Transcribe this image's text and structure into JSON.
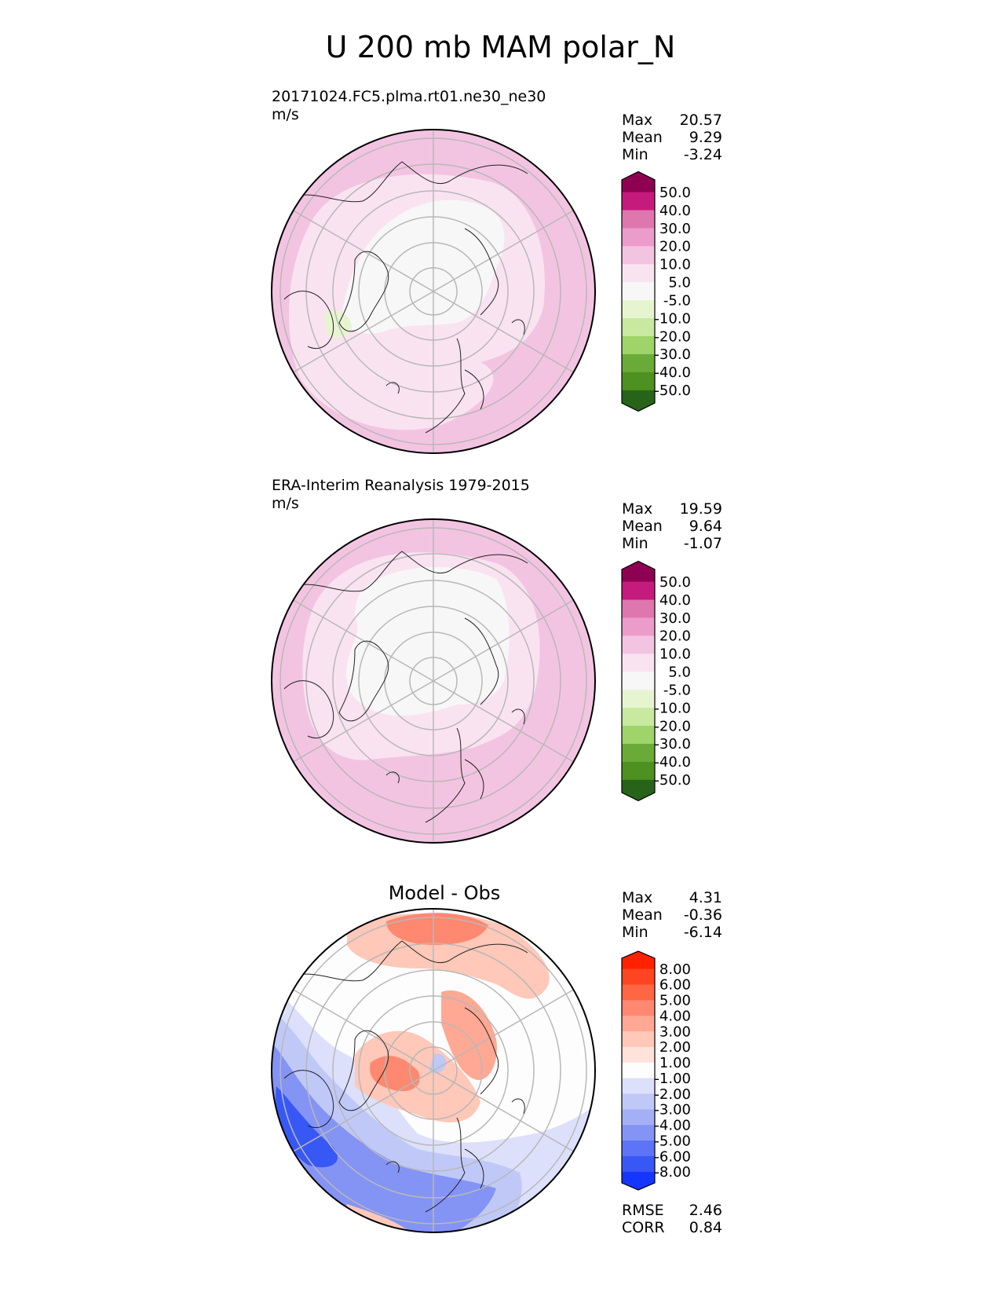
{
  "title": "U 200 mb MAM polar_N",
  "panels": [
    {
      "id": "test",
      "title_line1": "20171024.FC5.plma.rt01.ne30_ne30",
      "title_line2": "m/s",
      "stats": [
        {
          "label": "Max",
          "value": "20.57"
        },
        {
          "label": "Mean",
          "value": "9.29"
        },
        {
          "label": "Min",
          "value": "-3.24"
        }
      ],
      "colorbar": {
        "labels": [
          "50.0",
          "40.0",
          "30.0",
          "20.0",
          "10.0",
          "5.0",
          "-5.0",
          "-10.0",
          "-20.0",
          "-30.0",
          "-40.0",
          "-50.0"
        ],
        "colors": [
          "#8e0152",
          "#c51b7d",
          "#de77ae",
          "#ec9ccb",
          "#f3c4e1",
          "#fae3f1",
          "#f7f7f7",
          "#e6f5d0",
          "#c7e9a0",
          "#9ed46a",
          "#6aab37",
          "#4d9221",
          "#276419"
        ]
      }
    },
    {
      "id": "ref",
      "title_line1": "ERA-Interim Reanalysis 1979-2015",
      "title_line2": "m/s",
      "stats": [
        {
          "label": "Max",
          "value": "19.59"
        },
        {
          "label": "Mean",
          "value": "9.64"
        },
        {
          "label": "Min",
          "value": "-1.07"
        }
      ],
      "colorbar": {
        "labels": [
          "50.0",
          "40.0",
          "30.0",
          "20.0",
          "10.0",
          "5.0",
          "-5.0",
          "-10.0",
          "-20.0",
          "-30.0",
          "-40.0",
          "-50.0"
        ],
        "colors": [
          "#8e0152",
          "#c51b7d",
          "#de77ae",
          "#ec9ccb",
          "#f3c4e1",
          "#fae3f1",
          "#f7f7f7",
          "#e6f5d0",
          "#c7e9a0",
          "#9ed46a",
          "#6aab37",
          "#4d9221",
          "#276419"
        ]
      }
    },
    {
      "id": "diff",
      "title_center": "Model - Obs",
      "stats": [
        {
          "label": "Max",
          "value": "4.31"
        },
        {
          "label": "Mean",
          "value": "-0.36"
        },
        {
          "label": "Min",
          "value": "-6.14"
        }
      ],
      "metrics": [
        {
          "label": "RMSE",
          "value": "2.46"
        },
        {
          "label": "CORR",
          "value": "0.84"
        }
      ],
      "colorbar": {
        "labels": [
          "8.00",
          "6.00",
          "5.00",
          "4.00",
          "3.00",
          "2.00",
          "1.00",
          "-1.00",
          "-2.00",
          "-3.00",
          "-4.00",
          "-5.00",
          "-6.00",
          "-8.00"
        ],
        "colors": [
          "#ff2200",
          "#ff4422",
          "#ff6644",
          "#ff8870",
          "#ffa894",
          "#ffc8b8",
          "#ffe2da",
          "#fdfdfd",
          "#dce0fb",
          "#c0c8f8",
          "#a4b0f6",
          "#8494f5",
          "#5c74f5",
          "#3858f6",
          "#1436ff"
        ]
      }
    }
  ],
  "chart_data": [
    {
      "type": "heatmap",
      "projection": "north polar stereographic",
      "title": "20171024.FC5.plma.rt01.ne30_ne30",
      "units": "m/s",
      "variable": "U 200 mb MAM",
      "stats": {
        "max": 20.57,
        "mean": 9.29,
        "min": -3.24
      },
      "levels": [
        -50,
        -40,
        -30,
        -20,
        -10,
        -5,
        5,
        10,
        20,
        30,
        40,
        50
      ]
    },
    {
      "type": "heatmap",
      "projection": "north polar stereographic",
      "title": "ERA-Interim Reanalysis 1979-2015",
      "units": "m/s",
      "variable": "U 200 mb MAM",
      "stats": {
        "max": 19.59,
        "mean": 9.64,
        "min": -1.07
      },
      "levels": [
        -50,
        -40,
        -30,
        -20,
        -10,
        -5,
        5,
        10,
        20,
        30,
        40,
        50
      ]
    },
    {
      "type": "heatmap",
      "projection": "north polar stereographic",
      "title": "Model - Obs",
      "variable": "U 200 mb MAM difference",
      "stats": {
        "max": 4.31,
        "mean": -0.36,
        "min": -6.14,
        "rmse": 2.46,
        "corr": 0.84
      },
      "levels": [
        -8,
        -6,
        -5,
        -4,
        -3,
        -2,
        -1,
        1,
        2,
        3,
        4,
        5,
        6,
        8
      ]
    }
  ]
}
